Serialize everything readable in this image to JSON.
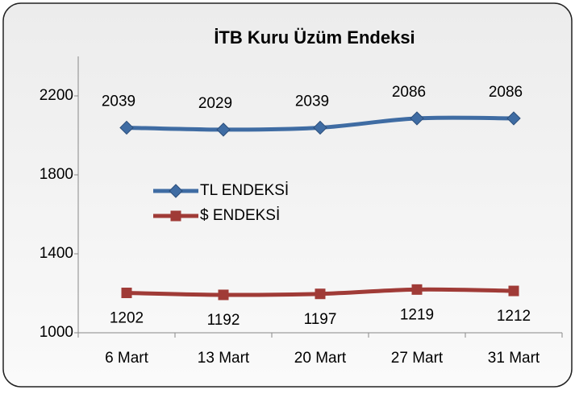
{
  "chart_data": {
    "type": "line",
    "title": "İTB Kuru Üzüm Endeksi",
    "categories": [
      "6 Mart",
      "13 Mart",
      "20 Mart",
      "27 Mart",
      "31 Mart"
    ],
    "series": [
      {
        "name": "TL ENDEKSİ",
        "color": "#3f6ca3",
        "marker": "diamond",
        "values": [
          2039,
          2029,
          2039,
          2086,
          2086
        ]
      },
      {
        "name": "$ ENDEKSİ",
        "color": "#a03b37",
        "marker": "square",
        "values": [
          1202,
          1192,
          1197,
          1219,
          1212
        ]
      }
    ],
    "ylim": [
      1000,
      2400
    ],
    "yticks": [
      1000,
      1400,
      1800,
      2200
    ],
    "grid": false,
    "smooth": true,
    "legend": "center-left"
  }
}
